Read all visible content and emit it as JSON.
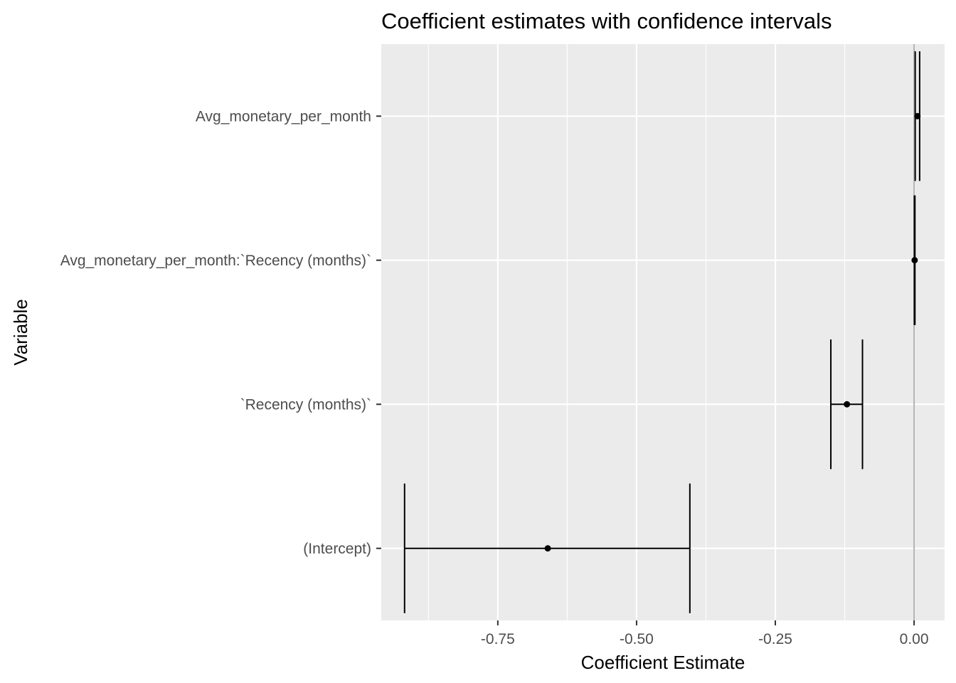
{
  "chart_data": {
    "type": "errorbar",
    "title": "Coefficient estimates with confidence intervals",
    "xlabel": "Coefficient Estimate",
    "ylabel": "Variable",
    "xlim": [
      -0.96,
      0.055
    ],
    "x_ticks": [
      -0.75,
      -0.5,
      -0.25,
      0.0
    ],
    "x_tick_labels": [
      "-0.75",
      "-0.50",
      "-0.25",
      "0.00"
    ],
    "reference_line": 0,
    "grid": true,
    "categories": [
      "(Intercept)",
      "`Recency (months)`",
      "Avg_monetary_per_month:`Recency (months)`",
      "Avg_monetary_per_month"
    ],
    "estimates": [
      -0.66,
      -0.121,
      0.001,
      0.006
    ],
    "lower": [
      -0.918,
      -0.15,
      0.0005,
      0.002
    ],
    "upper": [
      -0.404,
      -0.093,
      0.0015,
      0.01
    ],
    "colors": {
      "panel": "#ebebeb",
      "grid": "#ffffff",
      "zero_line": "#b3b3b3",
      "marks": "#000000",
      "tick_text": "#4d4d4d"
    }
  }
}
